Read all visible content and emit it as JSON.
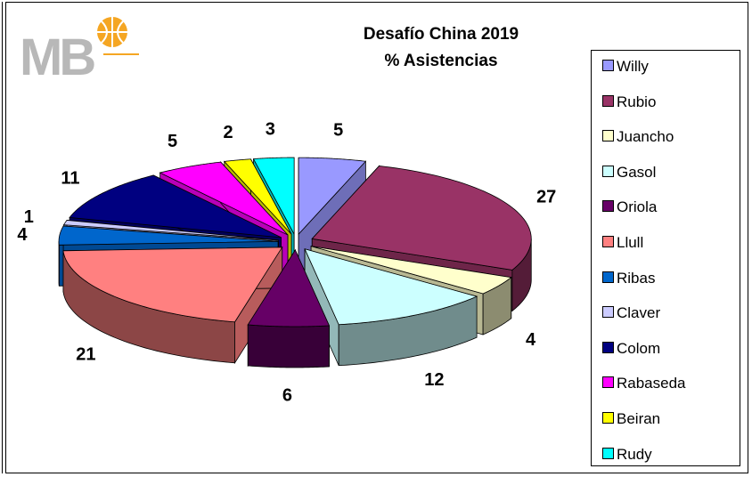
{
  "logo": {
    "text": "MB",
    "icon": "basketball-icon",
    "color_letters": "#b8b8b8",
    "color_ball": "#f5a623"
  },
  "chart_data": {
    "type": "pie",
    "title_lines": [
      "Desafío China 2019",
      "% Asistencias"
    ],
    "legend_position": "right",
    "slices": [
      {
        "name": "Willy",
        "value": 5,
        "label": "5",
        "color": "#9999ff"
      },
      {
        "name": "Rubio",
        "value": 27,
        "label": "27",
        "color": "#993366"
      },
      {
        "name": "Juancho",
        "value": 4,
        "label": "4",
        "color": "#ffffcc"
      },
      {
        "name": "Gasol",
        "value": 12,
        "label": "12",
        "color": "#ccffff"
      },
      {
        "name": "Oriola",
        "value": 6,
        "label": "6",
        "color": "#660066"
      },
      {
        "name": "Llull",
        "value": 21,
        "label": "21",
        "color": "#ff8080"
      },
      {
        "name": "Ribas",
        "value": 4,
        "label": "4",
        "color": "#0066cc"
      },
      {
        "name": "Claver",
        "value": 1,
        "label": "1",
        "color": "#ccccff"
      },
      {
        "name": "Colom",
        "value": 11,
        "label": "11",
        "color": "#000080"
      },
      {
        "name": "Rabaseda",
        "value": 5,
        "label": "5",
        "color": "#ff00ff"
      },
      {
        "name": "Beiran",
        "value": 2,
        "label": "2",
        "color": "#ffff00"
      },
      {
        "name": "Rudy",
        "value": 3,
        "label": "3",
        "color": "#00ffff"
      }
    ]
  }
}
